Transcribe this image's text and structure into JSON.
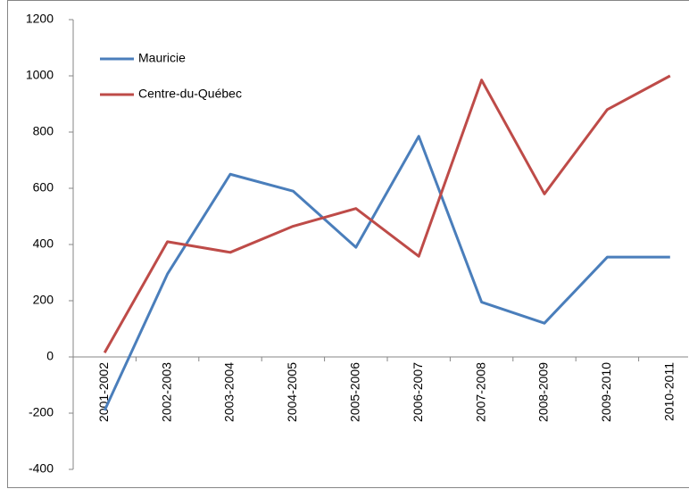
{
  "chart_data": {
    "type": "line",
    "categories": [
      "2001-2002",
      "2002-2003",
      "2003-2004",
      "2004-2005",
      "2005-2006",
      "2006-2007",
      "2007-2008",
      "2008-2009",
      "2009-2010",
      "2010-2011"
    ],
    "series": [
      {
        "name": "Mauricie",
        "color": "#4a7ebb",
        "values": [
          -190,
          295,
          650,
          590,
          390,
          785,
          195,
          120,
          355,
          355
        ]
      },
      {
        "name": "Centre-du-Québec",
        "color": "#be4b48",
        "values": [
          15,
          410,
          372,
          465,
          528,
          358,
          985,
          580,
          880,
          1000
        ]
      }
    ],
    "ylim": [
      -400,
      1200
    ],
    "yticks": [
      -400,
      -200,
      0,
      200,
      400,
      600,
      800,
      1000,
      1200
    ],
    "grid": false,
    "legend": "top-left"
  }
}
